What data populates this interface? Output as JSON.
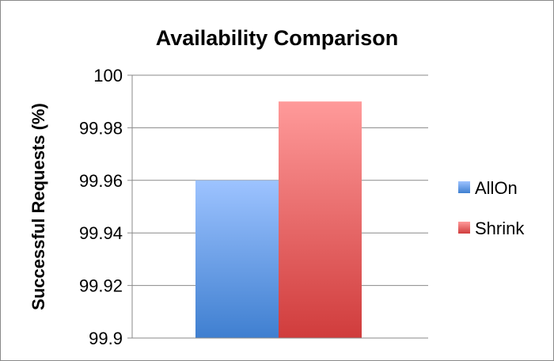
{
  "chart_data": {
    "type": "bar",
    "title": "Availability Comparison",
    "xlabel": "",
    "ylabel": "Successful Requests (%)",
    "ylim": [
      99.9,
      100
    ],
    "yticks": [
      "99.9",
      "99.92",
      "99.94",
      "99.96",
      "99.98",
      "100"
    ],
    "grid": true,
    "legend_position": "right",
    "series": [
      {
        "name": "AllOn",
        "values": [
          99.96
        ],
        "color_top": "#9dc3ff",
        "color_bottom": "#3f7fd0"
      },
      {
        "name": "Shrink",
        "values": [
          99.99
        ],
        "color_top": "#ff9a9a",
        "color_bottom": "#d03c3c"
      }
    ]
  }
}
